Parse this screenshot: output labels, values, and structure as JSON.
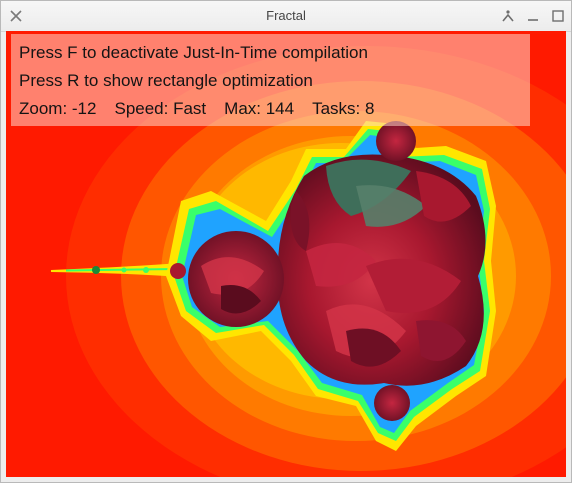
{
  "window": {
    "title": "Fractal",
    "controls": [
      "close-icon",
      "pin-icon",
      "minimize-icon",
      "maximize-icon"
    ]
  },
  "overlay": {
    "line1": "Press F to deactivate Just-In-Time compilation",
    "line2": "Press R to show rectangle optimization",
    "stats": {
      "zoom": "Zoom: -12",
      "speed": "Speed: Fast",
      "max": "Max: 144",
      "tasks": "Tasks: 8"
    }
  },
  "colors": {
    "background_red": "#ff1a00",
    "band_orange": "#ff7a00",
    "band_yellow": "#ffe600",
    "boundary_green": "#39ff6a",
    "rose_red": "#b8203a",
    "rose_dark": "#6e0f24",
    "leaf_green": "#3f6e5a"
  }
}
